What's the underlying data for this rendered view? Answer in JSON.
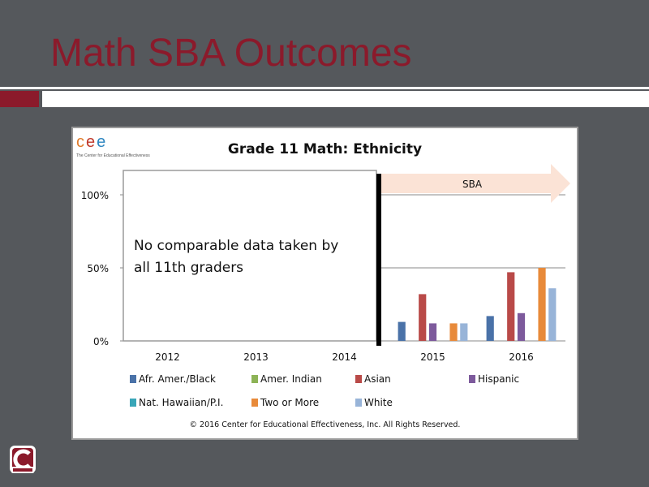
{
  "slide": {
    "title": "Math SBA Outcomes",
    "accent_color": "#8b1a2b",
    "background_color": "#55585c"
  },
  "logo": {
    "letters": [
      "c",
      "e",
      "e"
    ],
    "subtitle": "The Center for Educational Effectiveness"
  },
  "notice": {
    "line1": "No comparable data taken by",
    "line2": "all 11th graders"
  },
  "banner": {
    "label": "SBA",
    "color": "#fbe3d6"
  },
  "copyright": "© 2016 Center for Educational Effectiveness, Inc. All Rights Reserved.",
  "badge_icon": "school-logo-icon",
  "chart_data": {
    "type": "bar",
    "title": "Grade 11 Math: Ethnicity",
    "xlabel": "",
    "ylabel": "",
    "ylim": [
      0,
      100
    ],
    "yticks": [
      "0%",
      "50%",
      "100%"
    ],
    "categories": [
      "2012",
      "2013",
      "2014",
      "2015",
      "2016"
    ],
    "legend_placement": "bottom",
    "gridlines": true,
    "series": [
      {
        "name": "Afr. Amer./Black",
        "color": "#4a72a8",
        "values": [
          null,
          null,
          null,
          13,
          17
        ]
      },
      {
        "name": "Amer. Indian",
        "color": "#8db356",
        "values": [
          null,
          null,
          null,
          0,
          0
        ]
      },
      {
        "name": "Asian",
        "color": "#b94a48",
        "values": [
          null,
          null,
          null,
          32,
          47
        ]
      },
      {
        "name": "Hispanic",
        "color": "#7d5a9c",
        "values": [
          null,
          null,
          null,
          12,
          19
        ]
      },
      {
        "name": "Nat. Hawaiian/P.I.",
        "color": "#39a6b8",
        "values": [
          null,
          null,
          null,
          0,
          0
        ]
      },
      {
        "name": "Two or More",
        "color": "#e88a3a",
        "values": [
          null,
          null,
          null,
          12,
          50
        ]
      },
      {
        "name": "White",
        "color": "#98b4d8",
        "values": [
          null,
          null,
          null,
          12,
          36
        ]
      }
    ]
  }
}
